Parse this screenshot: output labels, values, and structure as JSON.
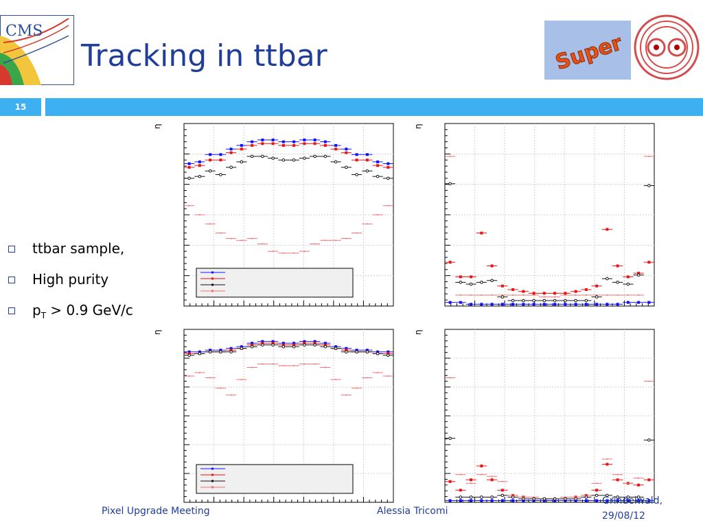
{
  "title": "Tracking in ttbar",
  "slide_number": "15",
  "bullets": [
    {
      "text": "ttbar sample,",
      "sub": "",
      "rest": ""
    },
    {
      "text": "High purity",
      "sub": "",
      "rest": ""
    },
    {
      "text": "p",
      "sub": "T",
      "rest": " > 0.9 GeV/c"
    }
  ],
  "footer": {
    "meeting": "Pixel Upgrade Meeting",
    "author": "Alessia Tricomi",
    "place": "Grindelwald,",
    "date": "29/08/12"
  },
  "logos": {
    "cms": "CMS",
    "super": "Super"
  },
  "colors": {
    "blue": "#1010ff",
    "red": "#ee1111",
    "black": "#111111",
    "pink": "#f07070",
    "accent": "#3cb0f0",
    "title": "#1f3d99"
  },
  "chart_data": [
    {
      "type": "scatter",
      "axis_label_y": "η",
      "ylim": [
        0,
        1
      ],
      "series": [
        {
          "color": "blue",
          "y": [
            0.78,
            0.79,
            0.83,
            0.83,
            0.86,
            0.88,
            0.9,
            0.91,
            0.91,
            0.9,
            0.9,
            0.91,
            0.91,
            0.9,
            0.88,
            0.86,
            0.83,
            0.83,
            0.79,
            0.78
          ]
        },
        {
          "color": "red",
          "y": [
            0.76,
            0.77,
            0.8,
            0.8,
            0.84,
            0.86,
            0.88,
            0.89,
            0.89,
            0.88,
            0.88,
            0.89,
            0.89,
            0.88,
            0.86,
            0.84,
            0.8,
            0.8,
            0.77,
            0.76
          ]
        },
        {
          "color": "black",
          "y": [
            0.7,
            0.71,
            0.74,
            0.72,
            0.76,
            0.79,
            0.82,
            0.82,
            0.81,
            0.8,
            0.8,
            0.81,
            0.82,
            0.82,
            0.79,
            0.76,
            0.72,
            0.74,
            0.71,
            0.7
          ]
        },
        {
          "color": "pink",
          "y": [
            0.55,
            0.5,
            0.45,
            0.4,
            0.37,
            0.36,
            0.37,
            0.34,
            0.3,
            0.29,
            0.29,
            0.3,
            0.34,
            0.36,
            0.36,
            0.37,
            0.4,
            0.45,
            0.5,
            0.55
          ]
        }
      ]
    },
    {
      "type": "scatter",
      "axis_label_y": "η",
      "ylim": [
        0,
        1
      ],
      "series": [
        {
          "color": "blue",
          "y": [
            0.02,
            0.02,
            0.01,
            0.01,
            0.01,
            0.01,
            0.01,
            0.01,
            0.01,
            0.01,
            0.01,
            0.01,
            0.01,
            0.01,
            0.01,
            0.01,
            0.01,
            0.02,
            0.02,
            0.02
          ]
        },
        {
          "color": "red",
          "y": [
            0.24,
            0.16,
            0.16,
            0.4,
            0.22,
            0.11,
            0.09,
            0.08,
            0.07,
            0.07,
            0.07,
            0.07,
            0.08,
            0.09,
            0.11,
            0.42,
            0.22,
            0.16,
            0.18,
            0.24
          ]
        },
        {
          "color": "pink",
          "y": [
            0.82,
            0.06,
            0.06,
            0.06,
            0.06,
            0.06,
            0.06,
            0.06,
            0.06,
            0.05,
            0.05,
            0.06,
            0.06,
            0.06,
            0.06,
            0.06,
            0.06,
            0.06,
            0.06,
            0.82
          ]
        },
        {
          "color": "black",
          "y": [
            0.67,
            0.13,
            0.12,
            0.13,
            0.14,
            0.05,
            0.03,
            0.03,
            0.03,
            0.03,
            0.03,
            0.03,
            0.03,
            0.03,
            0.05,
            0.15,
            0.13,
            0.12,
            0.17,
            0.66
          ]
        }
      ]
    },
    {
      "type": "scatter",
      "axis_label_y": "η",
      "ylim": [
        0,
        1
      ],
      "series": [
        {
          "color": "blue",
          "y": [
            0.87,
            0.87,
            0.88,
            0.88,
            0.89,
            0.9,
            0.92,
            0.93,
            0.93,
            0.92,
            0.92,
            0.93,
            0.93,
            0.92,
            0.9,
            0.89,
            0.88,
            0.88,
            0.87,
            0.87
          ]
        },
        {
          "color": "red",
          "y": [
            0.86,
            0.86,
            0.87,
            0.87,
            0.88,
            0.89,
            0.91,
            0.92,
            0.92,
            0.91,
            0.91,
            0.92,
            0.92,
            0.91,
            0.89,
            0.88,
            0.87,
            0.87,
            0.86,
            0.86
          ]
        },
        {
          "color": "black",
          "y": [
            0.85,
            0.86,
            0.87,
            0.87,
            0.87,
            0.89,
            0.9,
            0.91,
            0.91,
            0.9,
            0.9,
            0.91,
            0.91,
            0.9,
            0.89,
            0.87,
            0.87,
            0.87,
            0.86,
            0.85
          ]
        },
        {
          "color": "pink",
          "y": [
            0.73,
            0.75,
            0.72,
            0.66,
            0.62,
            0.71,
            0.78,
            0.8,
            0.8,
            0.79,
            0.79,
            0.8,
            0.8,
            0.78,
            0.71,
            0.62,
            0.66,
            0.72,
            0.75,
            0.73
          ]
        }
      ]
    },
    {
      "type": "scatter",
      "axis_label_y": "η",
      "ylim": [
        0,
        1
      ],
      "series": [
        {
          "color": "blue",
          "y": [
            0.01,
            0.01,
            0.01,
            0.01,
            0.01,
            0.01,
            0.01,
            0.01,
            0.01,
            0.01,
            0.01,
            0.01,
            0.01,
            0.01,
            0.01,
            0.01,
            0.01,
            0.01,
            0.01,
            0.01
          ]
        },
        {
          "color": "red",
          "y": [
            0.12,
            0.07,
            0.13,
            0.21,
            0.13,
            0.07,
            0.04,
            0.03,
            0.02,
            0.02,
            0.02,
            0.02,
            0.03,
            0.04,
            0.07,
            0.22,
            0.13,
            0.11,
            0.1,
            0.13
          ]
        },
        {
          "color": "pink",
          "y": [
            0.72,
            0.16,
            0.11,
            0.16,
            0.15,
            0.12,
            0.04,
            0.03,
            0.03,
            0.02,
            0.02,
            0.03,
            0.03,
            0.04,
            0.11,
            0.25,
            0.16,
            0.11,
            0.14,
            0.7
          ]
        },
        {
          "color": "black",
          "y": [
            0.37,
            0.03,
            0.03,
            0.03,
            0.03,
            0.04,
            0.03,
            0.02,
            0.02,
            0.02,
            0.02,
            0.02,
            0.02,
            0.03,
            0.04,
            0.04,
            0.03,
            0.03,
            0.03,
            0.36
          ]
        }
      ]
    }
  ]
}
